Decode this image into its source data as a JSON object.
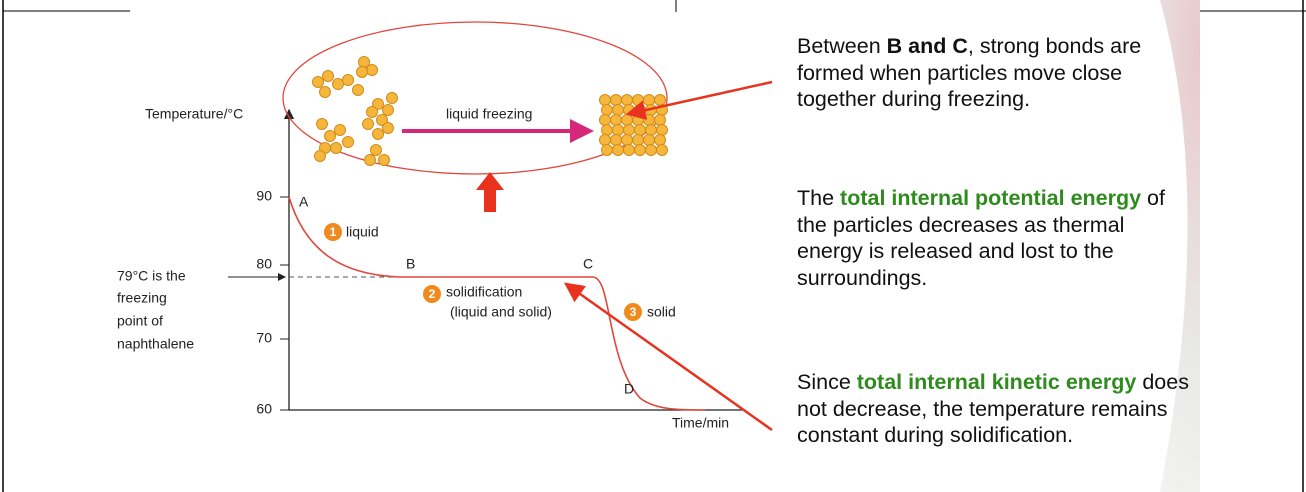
{
  "figure": {
    "y_axis_title": "Temperature/°C",
    "x_axis_title": "Time/min",
    "y_ticks": [
      "90",
      "80",
      "70",
      "60"
    ],
    "points": [
      "A",
      "B",
      "C",
      "D"
    ],
    "phases": [
      {
        "number": "1",
        "label": "liquid"
      },
      {
        "number": "2",
        "label": "solidification",
        "detail": "(liquid and solid)"
      },
      {
        "number": "3",
        "label": "solid"
      }
    ],
    "annotation": [
      "79°C is the",
      "freezing",
      "point of",
      "naphthalene"
    ],
    "inset_label": "liquid freezing"
  },
  "paragraphs": [
    [
      "Between ",
      "B and C",
      ", strong bonds are formed when particles move close together during freezing."
    ],
    [
      "The ",
      "total internal potential energy",
      " of the particles decreases as thermal energy is released and lost to the surroundings."
    ],
    [
      "Since ",
      "total internal kinetic energy",
      " does not decrease, the temperature remains constant during solidification."
    ]
  ]
}
